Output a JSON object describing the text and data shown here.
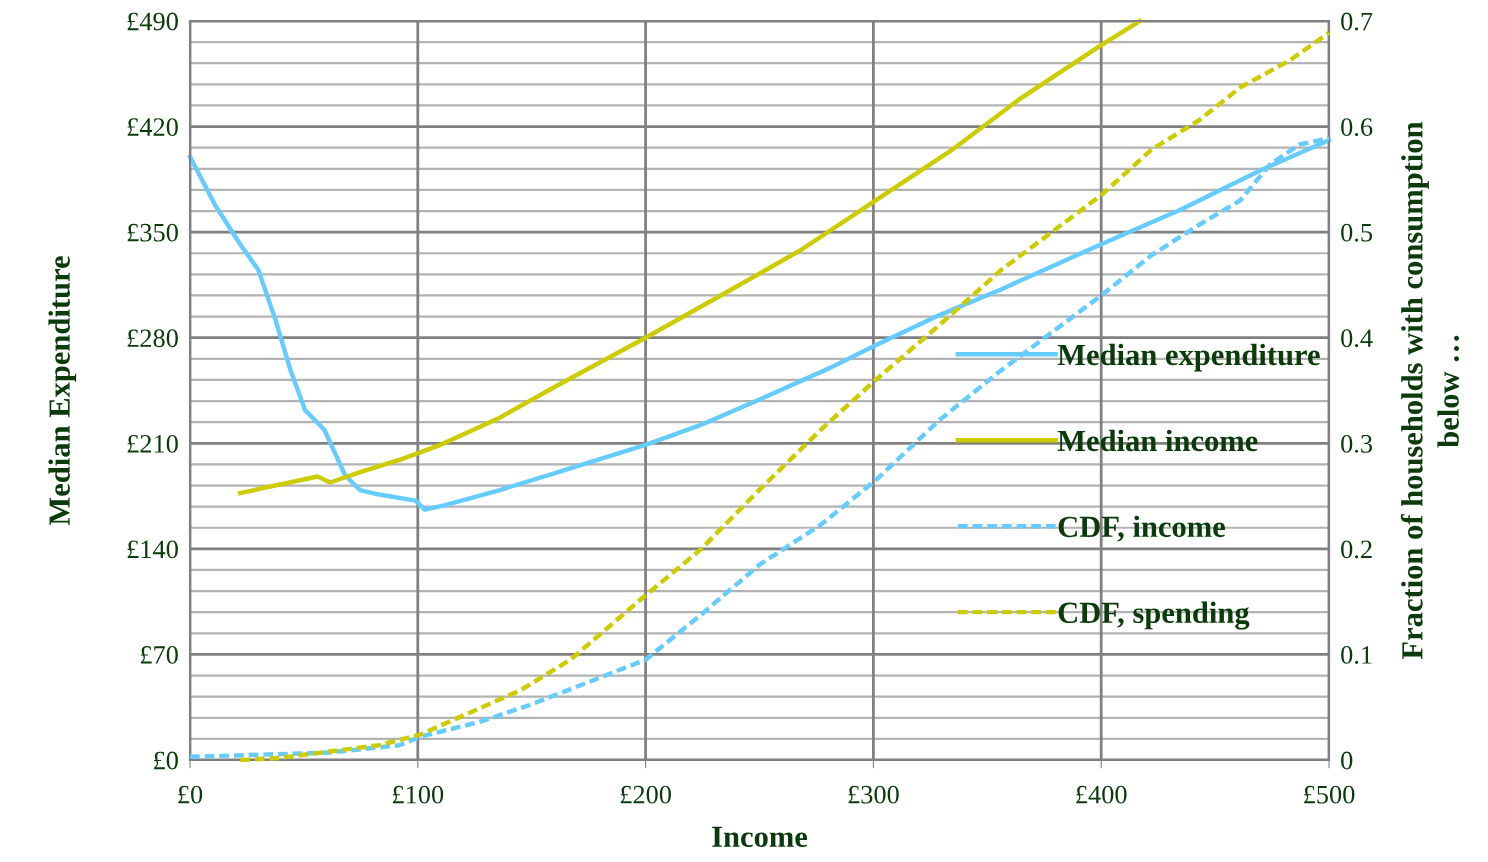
{
  "chart_data": {
    "type": "line",
    "xlabel": "Income",
    "ylabel": "Median Expenditure",
    "y2label": "Fraction of households with consumption\nbelow …",
    "xlim": [
      0,
      500
    ],
    "xticks": [
      {
        "value": 0,
        "label": "£0"
      },
      {
        "value": 100,
        "label": "£100"
      },
      {
        "value": 200,
        "label": "£200"
      },
      {
        "value": 300,
        "label": "£300"
      },
      {
        "value": 400,
        "label": "£400"
      },
      {
        "value": 500,
        "label": "£500"
      }
    ],
    "ylim": [
      0,
      490
    ],
    "yticks": [
      {
        "value": 0,
        "label": "£0"
      },
      {
        "value": 14,
        "label": null
      },
      {
        "value": 28,
        "label": null
      },
      {
        "value": 42,
        "label": null
      },
      {
        "value": 56,
        "label": null
      },
      {
        "value": 70,
        "label": "£70"
      },
      {
        "value": 84,
        "label": null
      },
      {
        "value": 98,
        "label": null
      },
      {
        "value": 112,
        "label": null
      },
      {
        "value": 126,
        "label": null
      },
      {
        "value": 140,
        "label": "£140"
      },
      {
        "value": 154,
        "label": null
      },
      {
        "value": 168,
        "label": null
      },
      {
        "value": 182,
        "label": null
      },
      {
        "value": 196,
        "label": null
      },
      {
        "value": 210,
        "label": "£210"
      },
      {
        "value": 224,
        "label": null
      },
      {
        "value": 238,
        "label": null
      },
      {
        "value": 252,
        "label": null
      },
      {
        "value": 266,
        "label": null
      },
      {
        "value": 280,
        "label": "£280"
      },
      {
        "value": 294,
        "label": null
      },
      {
        "value": 308,
        "label": null
      },
      {
        "value": 322,
        "label": null
      },
      {
        "value": 336,
        "label": null
      },
      {
        "value": 350,
        "label": "£350"
      },
      {
        "value": 364,
        "label": null
      },
      {
        "value": 378,
        "label": null
      },
      {
        "value": 392,
        "label": null
      },
      {
        "value": 406,
        "label": null
      },
      {
        "value": 420,
        "label": "£420"
      },
      {
        "value": 434,
        "label": null
      },
      {
        "value": 448,
        "label": null
      },
      {
        "value": 462,
        "label": null
      },
      {
        "value": 476,
        "label": null
      },
      {
        "value": 490,
        "label": "£490"
      }
    ],
    "y2lim": [
      0,
      0.7
    ],
    "y2ticks": [
      0,
      0.1,
      0.2,
      0.3,
      0.4,
      0.5,
      0.6,
      0.7
    ],
    "grid": true,
    "legend": "right",
    "marker": "none",
    "series": [
      {
        "name": "Median expenditure",
        "color": "#66ccff",
        "line_style": "solid",
        "x": [
          0,
          11,
          22,
          30,
          37.5,
          44,
          50.5,
          59,
          62,
          68,
          74.6,
          83,
          99,
          103,
          112,
          136,
          162,
          200,
          224,
          250,
          281,
          301,
          329,
          356,
          400,
          435,
          470,
          500
        ],
        "values": [
          400,
          368,
          342,
          325,
          292,
          259,
          232,
          219,
          209,
          189,
          179,
          176,
          172,
          166,
          169,
          179,
          191,
          209,
          222,
          239,
          260,
          275,
          295,
          312,
          342,
          365,
          391,
          411
        ]
      },
      {
        "name": "Median income",
        "color": "#cccc00",
        "line_style": "solid",
        "x": [
          22,
          56,
          61.5,
          75,
          92,
          110,
          136,
          162,
          200,
          233,
          268,
          301,
          334,
          364,
          400,
          417
        ],
        "values": [
          177,
          188,
          184,
          191,
          199,
          209,
          227,
          249,
          280,
          308,
          338,
          371,
          404,
          438,
          474,
          490
        ]
      },
      {
        "name": "CDF, income",
        "color": "#66ccff",
        "line_style": "dashed",
        "axis": "y2",
        "x": [
          0,
          61,
          92,
          101,
          127,
          149,
          180,
          200,
          224,
          250,
          277,
          301,
          329,
          356,
          400,
          422,
          443,
          461,
          474,
          487,
          500
        ],
        "values": [
          0.003,
          0.007,
          0.014,
          0.022,
          0.036,
          0.052,
          0.078,
          0.095,
          0.137,
          0.185,
          0.223,
          0.265,
          0.322,
          0.369,
          0.44,
          0.478,
          0.507,
          0.53,
          0.564,
          0.583,
          0.589
        ]
      },
      {
        "name": "CDF, spending",
        "color": "#cccc00",
        "line_style": "dashed",
        "axis": "y2",
        "x": [
          22,
          39.5,
          61,
          83,
          101,
          123,
          145,
          167,
          200,
          224,
          250,
          277,
          301,
          329,
          356,
          400,
          422,
          443,
          461,
          483,
          500
        ],
        "values": [
          0.0,
          0.002,
          0.008,
          0.014,
          0.024,
          0.045,
          0.066,
          0.095,
          0.156,
          0.199,
          0.256,
          0.313,
          0.36,
          0.412,
          0.464,
          0.535,
          0.578,
          0.606,
          0.637,
          0.663,
          0.689
        ]
      }
    ]
  }
}
